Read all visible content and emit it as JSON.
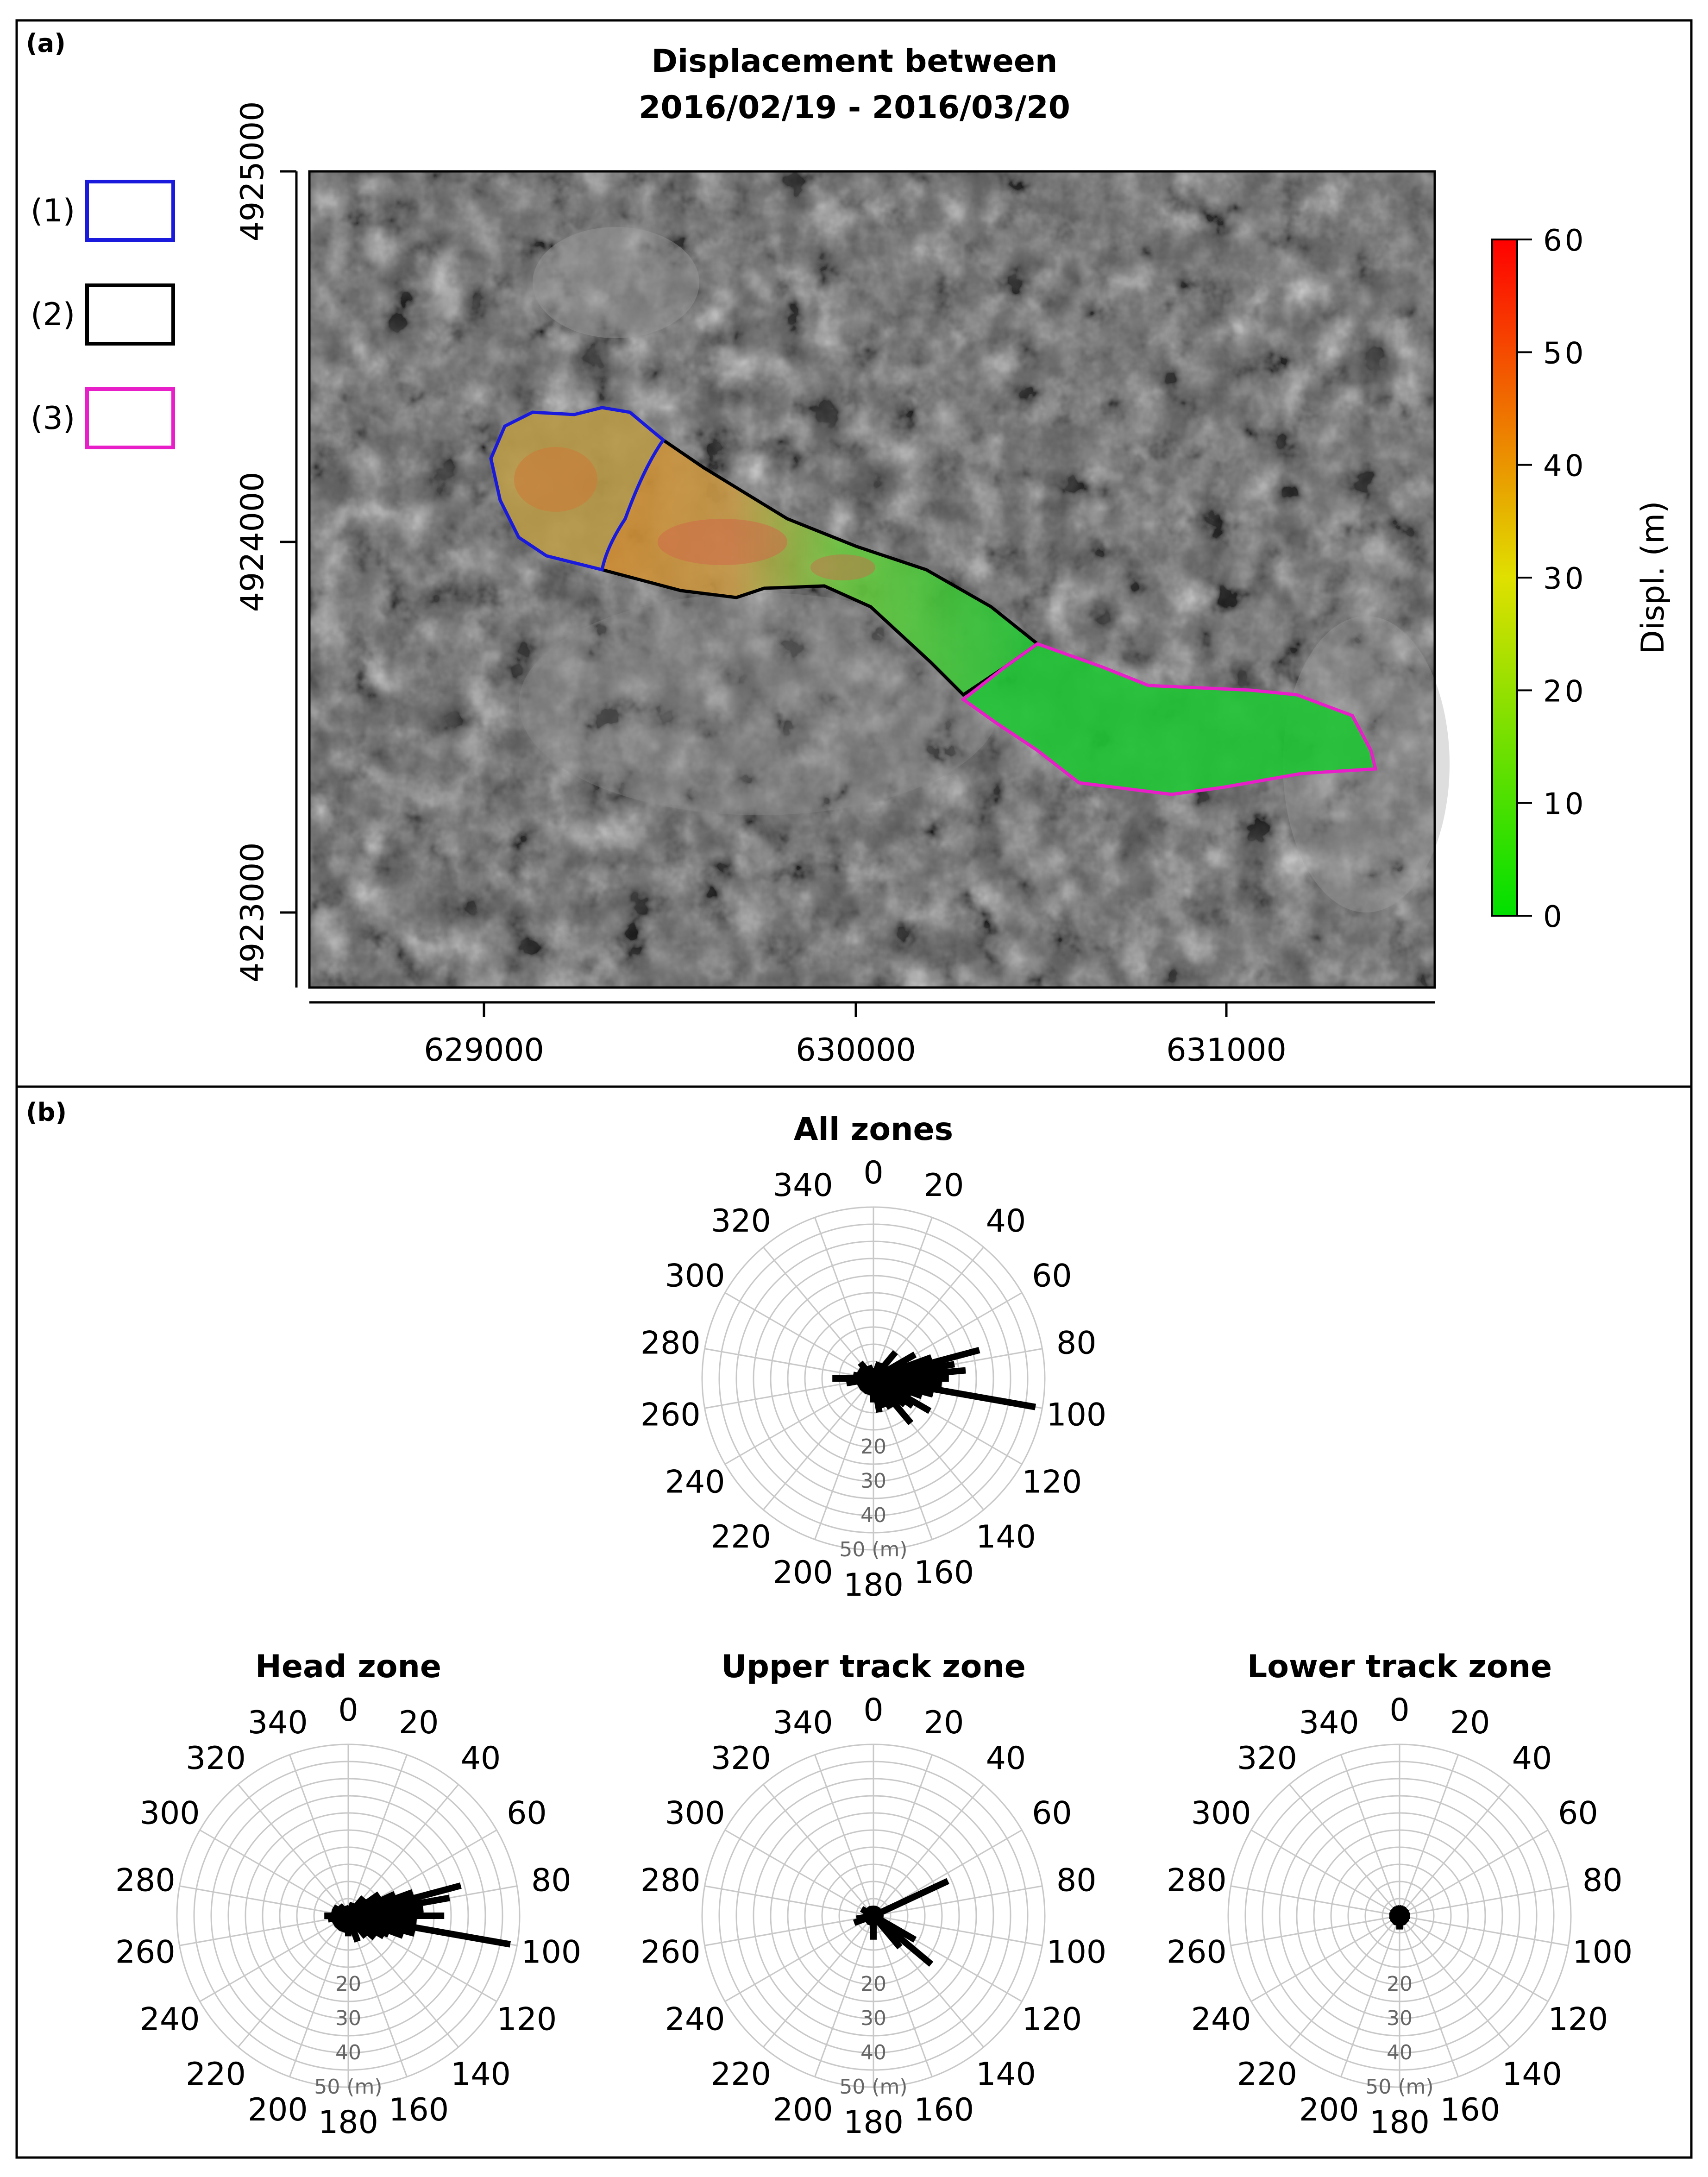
{
  "panel_a": {
    "label": "(a)",
    "title_line1": "Displacement between",
    "title_line2": "2016/02/19 - 2016/03/20",
    "legend": [
      {
        "label": "(1)",
        "color": "#1a1adc"
      },
      {
        "label": "(2)",
        "color": "#000000"
      },
      {
        "label": "(3)",
        "color": "#e81ec8"
      }
    ],
    "y_ticks": [
      "4925000",
      "4924000",
      "4923000"
    ],
    "x_ticks": [
      "629000",
      "630000",
      "631000"
    ],
    "colorbar": {
      "label": "Displ. (m)",
      "ticks": [
        "0",
        "10",
        "20",
        "30",
        "40",
        "50",
        "60"
      ],
      "min": 0,
      "max": 60,
      "color_low": "#00e000",
      "color_mid": "#e0e000",
      "color_high": "#ff0000"
    }
  },
  "panel_b": {
    "label": "(b)",
    "angle_labels": [
      "0",
      "20",
      "40",
      "60",
      "80",
      "100",
      "120",
      "140",
      "160",
      "180",
      "200",
      "220",
      "240",
      "260",
      "280",
      "300",
      "320",
      "340"
    ],
    "radial_labels": [
      "20",
      "30",
      "40",
      "50 (m)"
    ]
  },
  "chart_data": [
    {
      "type": "map",
      "title": "Displacement between 2016/02/19 - 2016/03/20",
      "xlim": [
        628530,
        631560
      ],
      "ylim": [
        4922800,
        4925000
      ],
      "x_ticks": [
        629000,
        630000,
        631000
      ],
      "y_ticks": [
        4923000,
        4924000,
        4925000
      ],
      "colorbar": {
        "label": "Displ. (m)",
        "range": [
          0,
          60
        ]
      },
      "zones": [
        "(1)",
        "(2)",
        "(3)"
      ]
    },
    {
      "type": "rose",
      "title": "All zones",
      "rmax": 50,
      "segments": [
        [
          100,
          48
        ],
        [
          75,
          32
        ],
        [
          80,
          24
        ],
        [
          85,
          27
        ],
        [
          90,
          22
        ],
        [
          95,
          20
        ],
        [
          105,
          18
        ],
        [
          110,
          15
        ],
        [
          115,
          12
        ],
        [
          120,
          19
        ],
        [
          125,
          14
        ],
        [
          130,
          12
        ],
        [
          140,
          17
        ],
        [
          150,
          10
        ],
        [
          160,
          9
        ],
        [
          170,
          10
        ],
        [
          180,
          7
        ],
        [
          200,
          5
        ],
        [
          220,
          5
        ],
        [
          240,
          5
        ],
        [
          260,
          8
        ],
        [
          270,
          12
        ],
        [
          280,
          6
        ],
        [
          300,
          5
        ],
        [
          320,
          6
        ],
        [
          340,
          4
        ],
        [
          0,
          3
        ],
        [
          20,
          5
        ],
        [
          40,
          10
        ],
        [
          60,
          14
        ],
        [
          70,
          18
        ]
      ]
    },
    {
      "type": "rose",
      "title": "Head zone",
      "rmax": 50,
      "segments": [
        [
          100,
          48
        ],
        [
          75,
          34
        ],
        [
          80,
          30
        ],
        [
          85,
          22
        ],
        [
          90,
          28
        ],
        [
          95,
          20
        ],
        [
          105,
          20
        ],
        [
          110,
          17
        ],
        [
          115,
          13
        ],
        [
          120,
          12
        ],
        [
          130,
          10
        ],
        [
          140,
          8
        ],
        [
          160,
          8
        ],
        [
          180,
          6
        ],
        [
          200,
          5
        ],
        [
          220,
          5
        ],
        [
          240,
          5
        ],
        [
          260,
          6
        ],
        [
          270,
          7
        ],
        [
          290,
          5
        ],
        [
          300,
          5
        ],
        [
          320,
          4
        ],
        [
          340,
          3
        ],
        [
          20,
          4
        ],
        [
          40,
          7
        ],
        [
          55,
          11
        ],
        [
          65,
          15
        ],
        [
          70,
          20
        ]
      ]
    },
    {
      "type": "rose",
      "title": "Upper track zone",
      "rmax": 50,
      "segments": [
        [
          65,
          24
        ],
        [
          130,
          22
        ],
        [
          120,
          14
        ],
        [
          140,
          12
        ],
        [
          250,
          6
        ],
        [
          260,
          5
        ],
        [
          280,
          3
        ],
        [
          300,
          4
        ],
        [
          320,
          3
        ],
        [
          180,
          7
        ],
        [
          200,
          3
        ]
      ]
    },
    {
      "type": "rose",
      "title": "Lower track zone",
      "rmax": 50,
      "segments": [
        [
          0,
          3
        ],
        [
          45,
          3
        ],
        [
          90,
          3
        ],
        [
          135,
          3
        ],
        [
          180,
          4
        ],
        [
          225,
          3
        ],
        [
          270,
          3
        ],
        [
          315,
          3
        ],
        [
          20,
          3
        ],
        [
          160,
          3
        ],
        [
          200,
          3
        ],
        [
          340,
          3
        ]
      ]
    }
  ]
}
